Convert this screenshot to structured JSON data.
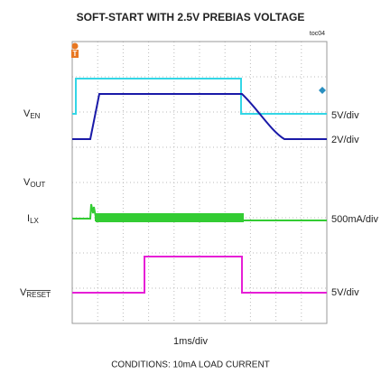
{
  "title": "SOFT-START WITH 2.5V PREBIAS VOLTAGE",
  "figure_id": "toc04",
  "trigger": "T",
  "labels": [
    {
      "main": "V",
      "sub": "EN"
    },
    {
      "main": "V",
      "sub": "OUT"
    },
    {
      "main": "I",
      "sub": "LX"
    },
    {
      "main": "V",
      "sub": "RESET"
    }
  ],
  "scales": [
    "5V/div",
    "2V/div",
    "500mA/div",
    "5V/div"
  ],
  "time_scale": "1ms/div",
  "conditions": "CONDITIONS: 10mA LOAD CURRENT"
}
